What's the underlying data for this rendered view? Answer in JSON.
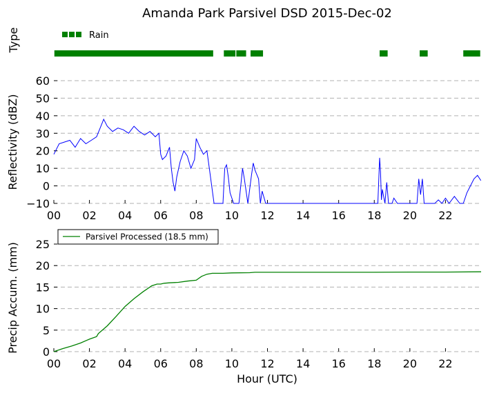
{
  "title": "Amanda Park Parsivel DSD 2015-Dec-02",
  "colors": {
    "rain": "#008000",
    "reflectivity": "#0000ff",
    "precip": "#008000",
    "grid": "#b0b0b0"
  },
  "chart_data": [
    {
      "type": "line",
      "panel": "type",
      "ylabel": "Type",
      "legend": {
        "label": "Rain",
        "placement": "top-left"
      },
      "series": [
        {
          "name": "Rain",
          "color": "#008000",
          "intervals": [
            [
              0.03,
              8.95
            ],
            [
              9.55,
              10.2
            ],
            [
              10.25,
              10.8
            ],
            [
              11.05,
              11.75
            ],
            [
              18.3,
              18.75
            ],
            [
              20.55,
              21.0
            ],
            [
              23.0,
              23.95
            ]
          ]
        }
      ]
    },
    {
      "type": "line",
      "panel": "reflectivity",
      "ylabel": "Reflectivity (dBZ)",
      "ylim": [
        -10,
        60
      ],
      "yticks": [
        "60",
        "50",
        "40",
        "30",
        "20",
        "10",
        "0",
        "−10"
      ],
      "grid": true,
      "series": [
        {
          "color": "#0000ff",
          "x": [
            0.0,
            0.3,
            0.6,
            0.9,
            1.2,
            1.5,
            1.8,
            2.1,
            2.4,
            2.6,
            2.8,
            3.0,
            3.3,
            3.6,
            3.9,
            4.2,
            4.5,
            4.8,
            5.1,
            5.4,
            5.7,
            5.9,
            6.0,
            6.1,
            6.3,
            6.5,
            6.6,
            6.7,
            6.8,
            6.9,
            7.1,
            7.3,
            7.5,
            7.7,
            7.9,
            8.0,
            8.2,
            8.4,
            8.6,
            8.8,
            9.0,
            9.3,
            9.5,
            9.6,
            9.7,
            9.8,
            9.9,
            10.1,
            10.4,
            10.6,
            10.7,
            10.9,
            11.1,
            11.2,
            11.3,
            11.5,
            11.6,
            11.7,
            11.9,
            12.3,
            14.0,
            16.0,
            18.2,
            18.3,
            18.35,
            18.4,
            18.45,
            18.6,
            18.7,
            18.8,
            19.0,
            19.1,
            19.3,
            19.6,
            20.0,
            20.4,
            20.5,
            20.6,
            20.7,
            20.8,
            20.9,
            21.0,
            21.2,
            21.4,
            21.6,
            21.8,
            22.0,
            22.2,
            22.5,
            22.8,
            23.0,
            23.2,
            23.4,
            23.6,
            23.8,
            23.99
          ],
          "y": [
            18,
            24,
            25,
            26,
            22,
            27,
            24,
            26,
            28,
            33,
            38,
            34,
            31,
            33,
            32,
            30,
            34,
            31,
            29,
            31,
            28,
            30,
            18,
            15,
            17,
            22,
            10,
            2,
            -3,
            5,
            14,
            20,
            17,
            10,
            15,
            27,
            22,
            18,
            20,
            5,
            -10,
            -10,
            -10,
            10,
            12,
            5,
            -4,
            -10,
            -10,
            10,
            4,
            -10,
            6,
            13,
            9,
            4,
            -10,
            -3,
            -10,
            -10,
            -10,
            -10,
            -10,
            16,
            8,
            -8,
            -2,
            -10,
            2,
            -10,
            -10,
            -7,
            -10,
            -10,
            -10,
            -10,
            4,
            -5,
            4,
            -10,
            -10,
            -10,
            -10,
            -10,
            -8,
            -10,
            -7,
            -10,
            -6,
            -10,
            -10,
            -4,
            0,
            4,
            6,
            3
          ]
        }
      ]
    },
    {
      "type": "line",
      "panel": "precip",
      "ylabel": "Precip Accum. (mm)",
      "xlabel": "Hour (UTC)",
      "ylim": [
        0,
        25
      ],
      "yticks": [
        "25",
        "20",
        "15",
        "10",
        "5",
        "0"
      ],
      "xticks": [
        "00",
        "02",
        "04",
        "06",
        "08",
        "10",
        "12",
        "14",
        "16",
        "18",
        "20",
        "22"
      ],
      "xlim": [
        0,
        24
      ],
      "grid": true,
      "legend": {
        "label": "Parsivel Processed (18.5 mm)",
        "placement": "top-left"
      },
      "series": [
        {
          "name": "Parsivel Processed (18.5 mm)",
          "color": "#008000",
          "x": [
            0,
            0.5,
            1,
            1.5,
            2,
            2.4,
            2.5,
            3,
            3.5,
            4,
            4.5,
            5,
            5.5,
            5.8,
            6,
            6.2,
            6.5,
            7,
            7.5,
            8,
            8.1,
            8.3,
            8.6,
            8.9,
            9.5,
            10,
            11,
            11.3,
            12,
            14,
            16,
            18,
            20,
            22,
            24
          ],
          "y": [
            0,
            0.7,
            1.3,
            2,
            2.9,
            3.5,
            4.2,
            6,
            8.2,
            10.5,
            12.3,
            13.9,
            15.3,
            15.7,
            15.7,
            15.9,
            16,
            16.1,
            16.4,
            16.6,
            16.9,
            17.5,
            18,
            18.2,
            18.2,
            18.3,
            18.35,
            18.45,
            18.45,
            18.45,
            18.45,
            18.45,
            18.5,
            18.5,
            18.55
          ]
        }
      ]
    }
  ]
}
